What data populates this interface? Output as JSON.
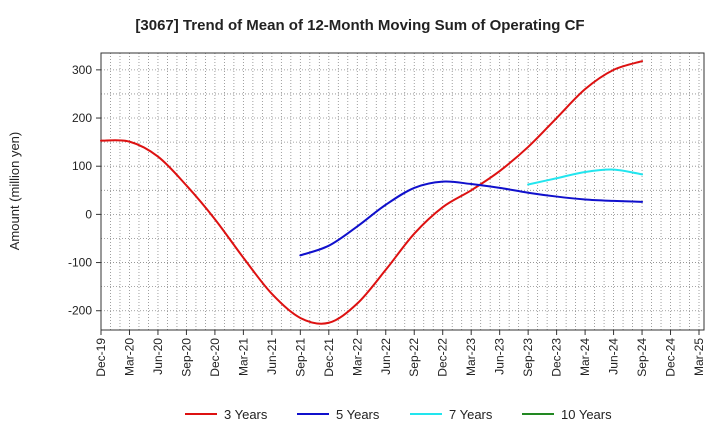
{
  "chart_data": {
    "type": "line",
    "title": "[3067]  Trend of Mean of 12-Month Moving Sum of Operating CF",
    "xlabel": "",
    "ylabel": "Amount (million yen)",
    "ylim": [
      -240,
      335
    ],
    "yticks": [
      300,
      200,
      100,
      0,
      -100,
      -200
    ],
    "ytick_labels": [
      "300",
      "200",
      "100",
      "0",
      "-100",
      "-200"
    ],
    "categories": [
      "Dec-19",
      "Mar-20",
      "Jun-20",
      "Sep-20",
      "Dec-20",
      "Mar-21",
      "Jun-21",
      "Sep-21",
      "Dec-21",
      "Mar-22",
      "Jun-22",
      "Sep-22",
      "Dec-22",
      "Mar-23",
      "Jun-23",
      "Sep-23",
      "Dec-23",
      "Mar-24",
      "Jun-24",
      "Sep-24",
      "Dec-24",
      "Mar-25"
    ],
    "grid": true,
    "legend_position": "bottom",
    "series": [
      {
        "name": "3 Years",
        "color": "#dd1111",
        "values": [
          153,
          151,
          120,
          60,
          -10,
          -90,
          -165,
          -215,
          -225,
          -185,
          -115,
          -40,
          15,
          50,
          90,
          140,
          200,
          260,
          300,
          318,
          null,
          null
        ]
      },
      {
        "name": "5 Years",
        "color": "#1010cc",
        "values": [
          null,
          null,
          null,
          null,
          null,
          null,
          null,
          -85,
          -65,
          -25,
          20,
          55,
          68,
          63,
          55,
          45,
          37,
          31,
          28,
          26,
          null,
          null
        ]
      },
      {
        "name": "7 Years",
        "color": "#22e5ee",
        "values": [
          null,
          null,
          null,
          null,
          null,
          null,
          null,
          null,
          null,
          null,
          null,
          null,
          null,
          null,
          null,
          62,
          75,
          88,
          93,
          83,
          null,
          null
        ]
      },
      {
        "name": "10 Years",
        "color": "#228822",
        "values": [
          null,
          null,
          null,
          null,
          null,
          null,
          null,
          null,
          null,
          null,
          null,
          null,
          null,
          null,
          null,
          null,
          null,
          null,
          null,
          null,
          null,
          null
        ]
      }
    ]
  }
}
